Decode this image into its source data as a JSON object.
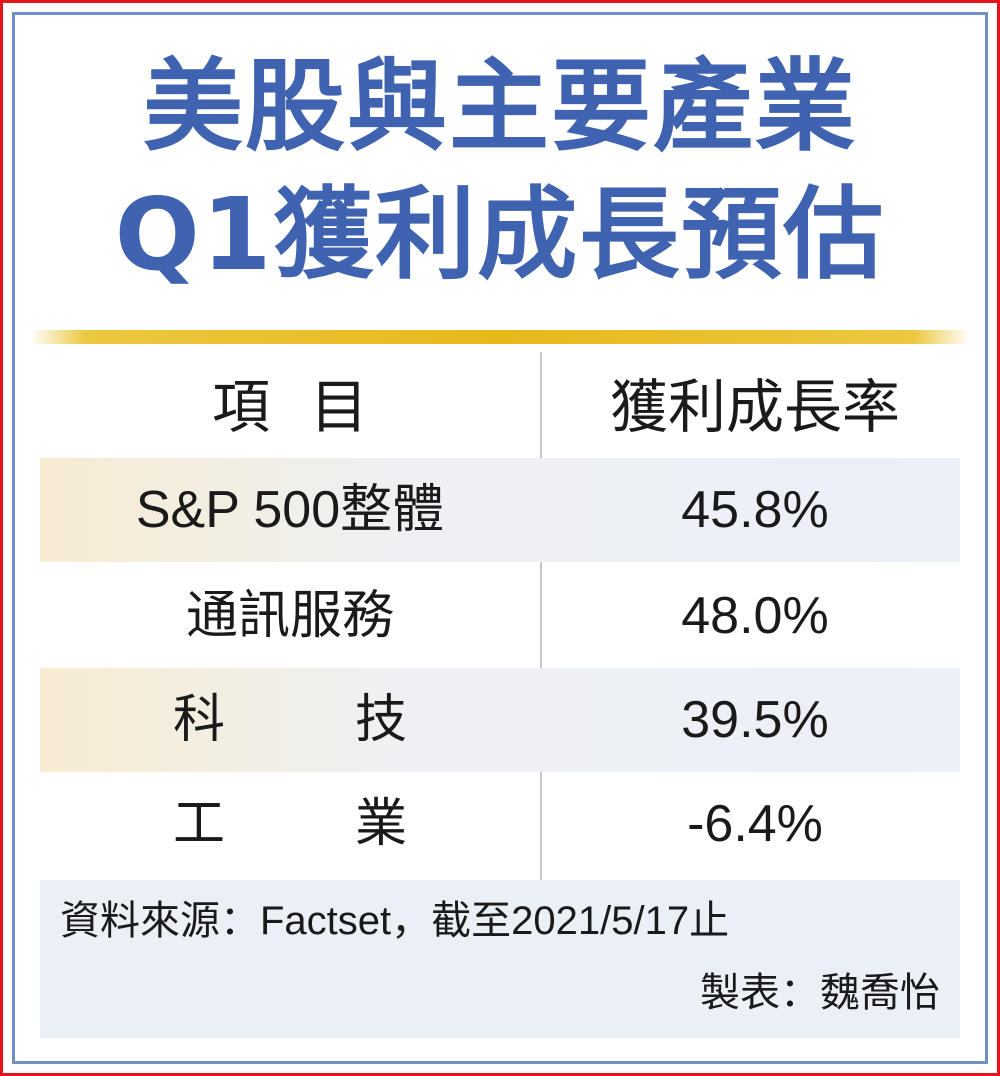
{
  "title": {
    "line1": "美股與主要產業",
    "line2": "Q1獲利成長預估"
  },
  "colors": {
    "title": "#3f63b0",
    "gold_rule": "#e6b91a",
    "outer_border": "#e8141c",
    "inner_border": "#6f91be",
    "row_shade": "#ecf0f7"
  },
  "chart_data": {
    "type": "table",
    "title": "美股與主要產業Q1獲利成長預估",
    "columns": [
      "項 目",
      "獲利成長率"
    ],
    "rows": [
      {
        "item": "S&P 500整體",
        "value": "45.8%"
      },
      {
        "item": "通訊服務",
        "value": "48.0%"
      },
      {
        "item": "科  技",
        "value": "39.5%"
      },
      {
        "item": "工  業",
        "value": "-6.4%"
      }
    ],
    "values": [
      45.8,
      48.0,
      39.5,
      -6.4
    ]
  },
  "table": {
    "header_item": "項目",
    "header_rate": "獲利成長率",
    "rows": [
      {
        "label": "S&P 500整體",
        "value": "45.8%"
      },
      {
        "label": "通訊服務",
        "value": "48.0%"
      },
      {
        "label": "科技",
        "value": "39.5%"
      },
      {
        "label": "工業",
        "value": "-6.4%"
      }
    ]
  },
  "footer": {
    "source": "資料來源：Factset，截至2021/5/17止",
    "credit": "製表：魏喬怡"
  }
}
